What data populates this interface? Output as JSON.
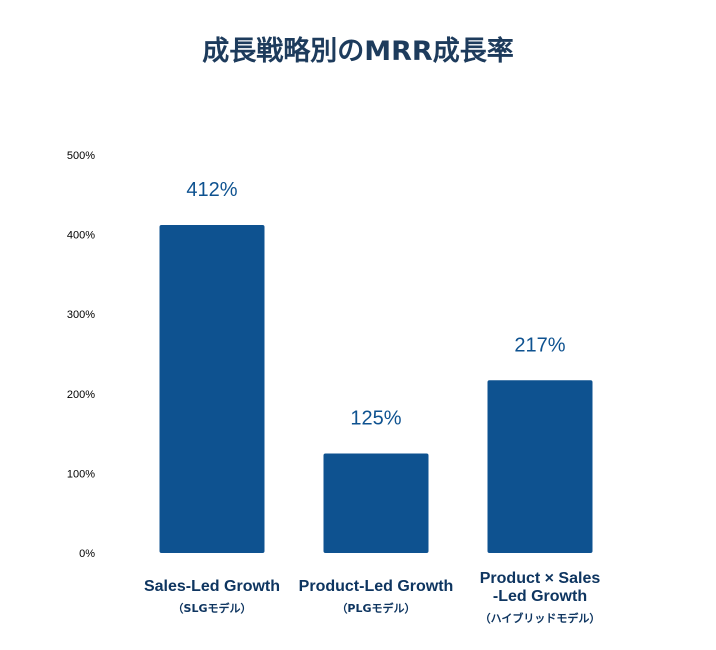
{
  "chart_data": {
    "type": "bar",
    "title": "成長戦略別のMRR成長率",
    "categories": [
      {
        "lines": [
          "Sales-Led Growth"
        ],
        "sub": "（SLGモデル）"
      },
      {
        "lines": [
          "Product-Led Growth"
        ],
        "sub": "（PLGモデル）"
      },
      {
        "lines": [
          "Product × Sales",
          "-Led Growth"
        ],
        "sub": "（ハイブリッドモデル）"
      }
    ],
    "values": [
      412,
      125,
      217
    ],
    "data_labels": [
      "412%",
      "125%",
      "217%"
    ],
    "ylim": [
      0,
      500
    ],
    "y_ticks": [
      0,
      100,
      200,
      300,
      400,
      500
    ],
    "y_tick_labels": [
      "0%",
      "100%",
      "200%",
      "300%",
      "400%",
      "500%"
    ],
    "xlabel": "",
    "ylabel": "",
    "grid": false,
    "colors": {
      "bar": "#0e5290",
      "title": "#1d3b5c",
      "label": "#0e5290",
      "axis_text": "#000000",
      "category_text": "#0e3560"
    }
  }
}
